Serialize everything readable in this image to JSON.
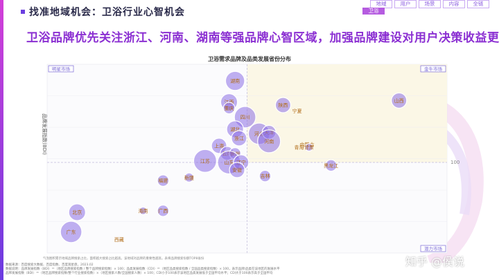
{
  "header": {
    "title": "找准地域机会：卫浴行业心智机会"
  },
  "nav": {
    "items": [
      "地域",
      "用户",
      "场景",
      "内容",
      "全链"
    ],
    "sub": "卫浴"
  },
  "headline": "卫浴品牌优先关注浙江、河南、湖南等强品牌心智区域，加强品牌建设对用户决策收益更大",
  "chart_data": {
    "type": "scatter",
    "title": "卫浴需求品牌及品类发展省份分布",
    "ylabel": "品牌发展指数(BDI)",
    "xlabel": "",
    "reference_label": "100",
    "quadrants": [
      "明星市场",
      "金牛市场",
      "潜力市场"
    ],
    "colors": {
      "bubble": "#8c6fe6",
      "quad": "#fbf7e6",
      "quad_label": "#7a6ad6",
      "label": "#b06a14"
    },
    "points": [
      {
        "name": "湖南",
        "x": 94,
        "y": 154,
        "r": 2.5
      },
      {
        "name": "江西",
        "x": 91,
        "y": 140,
        "r": 2.2
      },
      {
        "name": "重庆",
        "x": 91,
        "y": 136,
        "r": 1.5
      },
      {
        "name": "陕西",
        "x": 118,
        "y": 138,
        "r": 2.0
      },
      {
        "name": "山西",
        "x": 176,
        "y": 141,
        "r": 2.0
      },
      {
        "name": "宁夏",
        "x": 125,
        "y": 134,
        "r": 0.0
      },
      {
        "name": "四川",
        "x": 99,
        "y": 130,
        "r": 2.8
      },
      {
        "name": "湖北",
        "x": 94,
        "y": 122,
        "r": 2.2
      },
      {
        "name": "浙江",
        "x": 96,
        "y": 116,
        "r": 2.0
      },
      {
        "name": "河北",
        "x": 106,
        "y": 119,
        "r": 2.8
      },
      {
        "name": "天津",
        "x": 111,
        "y": 120,
        "r": 1.8
      },
      {
        "name": "河南",
        "x": 111,
        "y": 114,
        "r": 3.0
      },
      {
        "name": "上海",
        "x": 86,
        "y": 111,
        "r": 2.0
      },
      {
        "name": "云南",
        "x": 90,
        "y": 106,
        "r": 1.8
      },
      {
        "name": "贵州",
        "x": 94,
        "y": 106,
        "r": 1.5
      },
      {
        "name": "江苏",
        "x": 79,
        "y": 101,
        "r": 3.0
      },
      {
        "name": "山东",
        "x": 91,
        "y": 100,
        "r": 3.0
      },
      {
        "name": "辽宁",
        "x": 97,
        "y": 100,
        "r": 2.0
      },
      {
        "name": "安徽",
        "x": 95,
        "y": 95,
        "r": 2.0
      },
      {
        "name": "内蒙古",
        "x": 130,
        "y": 112,
        "r": 0.0
      },
      {
        "name": "青海",
        "x": 126,
        "y": 110,
        "r": 0.0
      },
      {
        "name": "甘肃",
        "x": 131,
        "y": 110,
        "r": 1.0
      },
      {
        "name": "黑龙江",
        "x": 142,
        "y": 98,
        "r": 1.5
      },
      {
        "name": "吉林",
        "x": 109,
        "y": 91,
        "r": 1.5
      },
      {
        "name": "新疆",
        "x": 71,
        "y": 90,
        "r": 1.2
      },
      {
        "name": "福建",
        "x": 58,
        "y": 88,
        "r": 1.5
      },
      {
        "name": "北京",
        "x": 15,
        "y": 67,
        "r": 2.2
      },
      {
        "name": "海南",
        "x": 48,
        "y": 68,
        "r": 1.0
      },
      {
        "name": "广西",
        "x": 58,
        "y": 68,
        "r": 1.5
      },
      {
        "name": "广东",
        "x": 12,
        "y": 54,
        "r": 2.8
      },
      {
        "name": "西藏",
        "x": 36,
        "y": 49,
        "r": 0.0
      }
    ]
  },
  "notes": {
    "line1": "气泡图积累示地域品牌搜索占比，面积越大搜索占比越高。该地域对品牌的重要性越高，表将品牌搜索份额TOP8省份",
    "line2": "数据来源：百度搜索大数据、百度指数、百度观星盘，2023.02",
    "line3": "数据说明：品牌发展指数（BDI）＝（地区品牌搜索指数 / 整个品牌搜索指数）× 100；品类发展指数（CDI）＝（地区品类搜索指数 / 全国品类搜索指数）× 100，表示品牌/品类在该地区的发展水平",
    "line4": "品牌发展指数（BDI）＝（地区品牌搜索指数/整个行业搜索指数）×（地区搜索人数/全国搜索人数）× 100；CDI小于100表示该地区品类发展低于全国平均水平；CDI大于100表示高于全国平均"
  },
  "watermark": "知乎 @侯说"
}
